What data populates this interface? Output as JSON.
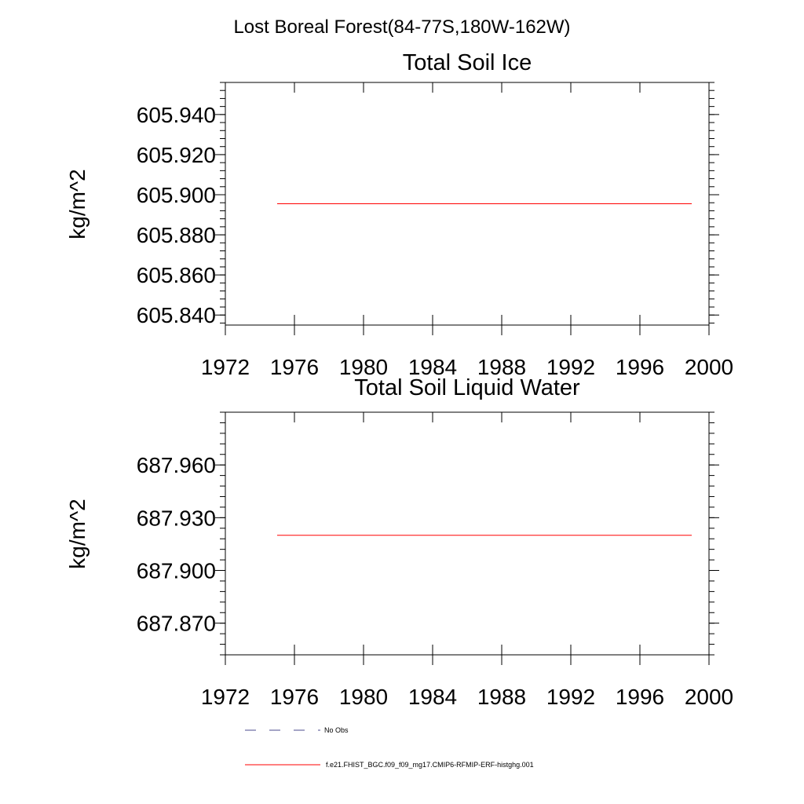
{
  "suptitle": "Lost Boreal Forest(84-77S,180W-162W)",
  "chart_data": [
    {
      "type": "line",
      "title": "Total Soil Ice",
      "xlabel": "",
      "ylabel": "kg/m^2",
      "xlim": [
        1972,
        2000
      ],
      "ylim": [
        605.835,
        605.956
      ],
      "xticks": [
        1972,
        1976,
        1980,
        1984,
        1988,
        1992,
        1996,
        2000
      ],
      "xtick_labels": [
        "1972",
        "1976",
        "1980",
        "1984",
        "1988",
        "1992",
        "1996",
        "2000"
      ],
      "yticks": [
        605.84,
        605.86,
        605.88,
        605.9,
        605.92,
        605.94
      ],
      "ytick_labels": [
        "605.840",
        "605.860",
        "605.880",
        "605.900",
        "605.920",
        "605.940"
      ],
      "yminor_step": 0.004,
      "series": [
        {
          "name": "f.e21.FHIST_BGC.f09_f09_mg17.CMIP6-RFMIP-ERF-histghg.001",
          "color": "#ff0000",
          "x": [
            1975,
            1999
          ],
          "y": [
            605.8955,
            605.8955
          ]
        }
      ]
    },
    {
      "type": "line",
      "title": "Total Soil Liquid Water",
      "xlabel": "",
      "ylabel": "kg/m^2",
      "xlim": [
        1972,
        2000
      ],
      "ylim": [
        687.852,
        687.99
      ],
      "xticks": [
        1972,
        1976,
        1980,
        1984,
        1988,
        1992,
        1996,
        2000
      ],
      "xtick_labels": [
        "1972",
        "1976",
        "1980",
        "1984",
        "1988",
        "1992",
        "1996",
        "2000"
      ],
      "yticks": [
        687.87,
        687.9,
        687.93,
        687.96
      ],
      "ytick_labels": [
        "687.870",
        "687.900",
        "687.930",
        "687.960"
      ],
      "yminor_step": 0.006,
      "series": [
        {
          "name": "f.e21.FHIST_BGC.f09_f09_mg17.CMIP6-RFMIP-ERF-histghg.001",
          "color": "#ff0000",
          "x": [
            1975,
            1999
          ],
          "y": [
            687.92,
            687.92
          ]
        }
      ]
    }
  ],
  "legend": [
    {
      "label": "No Obs",
      "color": "#4b4b8c",
      "dash": "dashed"
    },
    {
      "label": "f.e21.FHIST_BGC.f09_f09_mg17.CMIP6-RFMIP-ERF-histghg.001",
      "color": "#ff0000",
      "dash": "solid"
    }
  ]
}
